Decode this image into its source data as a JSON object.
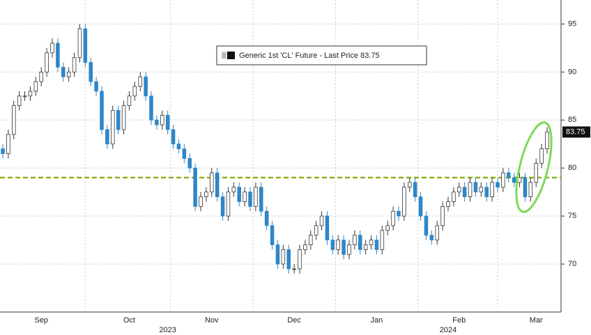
{
  "chart_data": {
    "type": "candlestick",
    "series_name": "Generic 1st 'CL' Future - Last Price 83.75",
    "up_color": "#ffffff",
    "down_color": "#2f86c8",
    "categories": [
      null,
      null,
      null,
      null,
      null,
      null,
      null,
      "Sep",
      null,
      null,
      null,
      null,
      null,
      null,
      null,
      null,
      null,
      null,
      null,
      null,
      null,
      null,
      null,
      "Oct",
      null,
      null,
      null,
      null,
      null,
      null,
      null,
      null,
      null,
      null,
      null,
      null,
      null,
      null,
      "Nov",
      null,
      null,
      null,
      null,
      null,
      null,
      null,
      null,
      null,
      null,
      null,
      null,
      null,
      null,
      "Dec",
      null,
      null,
      null,
      null,
      null,
      null,
      null,
      null,
      null,
      null,
      null,
      null,
      null,
      null,
      "Jan",
      null,
      null,
      null,
      null,
      null,
      null,
      null,
      null,
      null,
      null,
      null,
      null,
      null,
      null,
      "Feb",
      null,
      null,
      null,
      null,
      null,
      null,
      null,
      null,
      null,
      null,
      null,
      null,
      null,
      "Mar",
      null,
      null
    ],
    "year_categories": [
      null,
      null,
      null,
      null,
      null,
      null,
      null,
      null,
      null,
      null,
      null,
      null,
      null,
      null,
      null,
      null,
      null,
      null,
      null,
      null,
      null,
      null,
      null,
      null,
      null,
      null,
      null,
      null,
      null,
      null,
      "2023",
      null,
      null,
      null,
      null,
      null,
      null,
      null,
      null,
      null,
      null,
      null,
      null,
      null,
      null,
      null,
      null,
      null,
      null,
      null,
      null,
      null,
      null,
      null,
      null,
      null,
      null,
      null,
      null,
      null,
      null,
      null,
      null,
      null,
      null,
      null,
      null,
      null,
      null,
      null,
      null,
      null,
      null,
      null,
      null,
      null,
      null,
      null,
      null,
      null,
      null,
      "2024",
      null,
      null,
      null,
      null,
      null,
      null,
      null,
      null,
      null,
      null,
      null,
      null,
      null,
      null,
      null,
      null,
      null,
      null
    ],
    "open": [
      82,
      81.5,
      83.5,
      86.5,
      87.5,
      87.5,
      88,
      89,
      90,
      92,
      93,
      90.5,
      89.5,
      90,
      91.5,
      94.5,
      91,
      89,
      88,
      84,
      82.5,
      86,
      84,
      86.5,
      87.5,
      88.5,
      89.5,
      87.5,
      85,
      84.5,
      85.5,
      84,
      82.5,
      82,
      81,
      80,
      76,
      77,
      77.5,
      79.5,
      77,
      75,
      77.5,
      78,
      76.5,
      77.5,
      76,
      78,
      75.5,
      74,
      72,
      70,
      71.5,
      69.5,
      69.5,
      71.5,
      72,
      73,
      74,
      75,
      72.5,
      71.5,
      72.5,
      71,
      72,
      73,
      71.5,
      72,
      72.5,
      71.5,
      73.5,
      74,
      75.5,
      75,
      78,
      78.5,
      77,
      75,
      73,
      72.5,
      74,
      76,
      76.5,
      77.5,
      78,
      77,
      78.5,
      77.5,
      78,
      77,
      78.5,
      78,
      79.5,
      79,
      78.5,
      79,
      77,
      78.5,
      80.5,
      82
    ],
    "high": [
      82.5,
      84,
      87,
      88,
      88,
      88.5,
      89.5,
      90.5,
      92.5,
      93.5,
      93.5,
      91,
      90.5,
      92,
      95,
      95,
      91.5,
      89.5,
      88.5,
      84.5,
      86.5,
      86.5,
      87,
      88,
      89,
      90,
      90,
      88,
      85.5,
      86,
      86,
      84.5,
      83,
      82.5,
      81.5,
      80.5,
      77.5,
      78,
      80,
      80,
      77.5,
      78,
      78.5,
      78.5,
      78,
      78,
      78.5,
      78.5,
      76,
      74.5,
      72.5,
      72,
      72,
      70,
      72,
      72.5,
      73.5,
      74.5,
      75.5,
      75.5,
      73,
      73,
      73,
      72.5,
      73.5,
      73.5,
      72.5,
      73,
      73,
      74,
      74.5,
      76,
      76,
      78.5,
      79,
      79,
      77.5,
      75.5,
      73.5,
      74.5,
      76.5,
      77,
      78,
      78.5,
      78.5,
      79,
      79,
      78.5,
      78.5,
      79,
      79,
      80,
      80,
      79.5,
      79.5,
      79.5,
      79,
      81,
      82.5,
      84.25
    ],
    "low": [
      81,
      81,
      83,
      86,
      87,
      87,
      87.5,
      88.5,
      89.5,
      91.5,
      90,
      89,
      89,
      89.5,
      91,
      90.5,
      88.5,
      87.5,
      83.5,
      82,
      82,
      83.5,
      83.5,
      86,
      87,
      88,
      87,
      84.5,
      84,
      84,
      83.5,
      82,
      81.5,
      80.5,
      79.5,
      75.5,
      75.5,
      76.5,
      77,
      76.5,
      74.5,
      74.5,
      77,
      76,
      76,
      75.5,
      75.5,
      75,
      73.5,
      71.5,
      69.5,
      69.5,
      69,
      69,
      69,
      71,
      71.5,
      72.5,
      73.5,
      72,
      71,
      71,
      70.5,
      70.5,
      71.5,
      71,
      71,
      71.5,
      71,
      71,
      73,
      73.5,
      74.5,
      74.5,
      77.5,
      76.5,
      74.5,
      72.5,
      72,
      72,
      73.5,
      75.5,
      76,
      77,
      76.5,
      76.5,
      77,
      77,
      76.5,
      76.5,
      77.5,
      77.5,
      78.5,
      78,
      78,
      76.5,
      76.5,
      78,
      80,
      81.5
    ],
    "close": [
      81.5,
      83.5,
      86.5,
      87.5,
      87.5,
      88,
      89,
      90,
      92,
      93,
      90.5,
      89.5,
      90,
      91.5,
      94.5,
      91,
      89,
      88,
      84,
      82.5,
      86,
      84,
      86.5,
      87.5,
      88.5,
      89.5,
      87.5,
      85,
      84.5,
      85.5,
      84,
      82.5,
      82,
      81,
      80,
      76,
      77,
      77.5,
      79.5,
      77,
      75,
      77.5,
      78,
      76.5,
      77.5,
      76,
      78,
      75.5,
      74,
      72,
      70,
      71.5,
      69.5,
      69.5,
      71.5,
      72,
      73,
      74,
      75,
      72.5,
      71.5,
      72.5,
      71,
      72,
      73,
      71.5,
      72,
      72.5,
      71.5,
      73.5,
      74,
      75.5,
      75,
      78,
      78.5,
      77,
      75,
      73,
      72.5,
      74,
      76,
      76.5,
      77.5,
      78,
      77,
      78.5,
      77.5,
      78,
      77,
      78.5,
      78,
      79.5,
      79,
      78.5,
      79,
      77,
      78.5,
      80.5,
      82,
      83.75
    ],
    "reference_line": {
      "value": 79,
      "color": "#8cb319"
    },
    "ylim": [
      65,
      97.5
    ],
    "yticks": [
      70,
      75,
      80,
      85,
      90,
      95
    ],
    "grid": true
  }
}
